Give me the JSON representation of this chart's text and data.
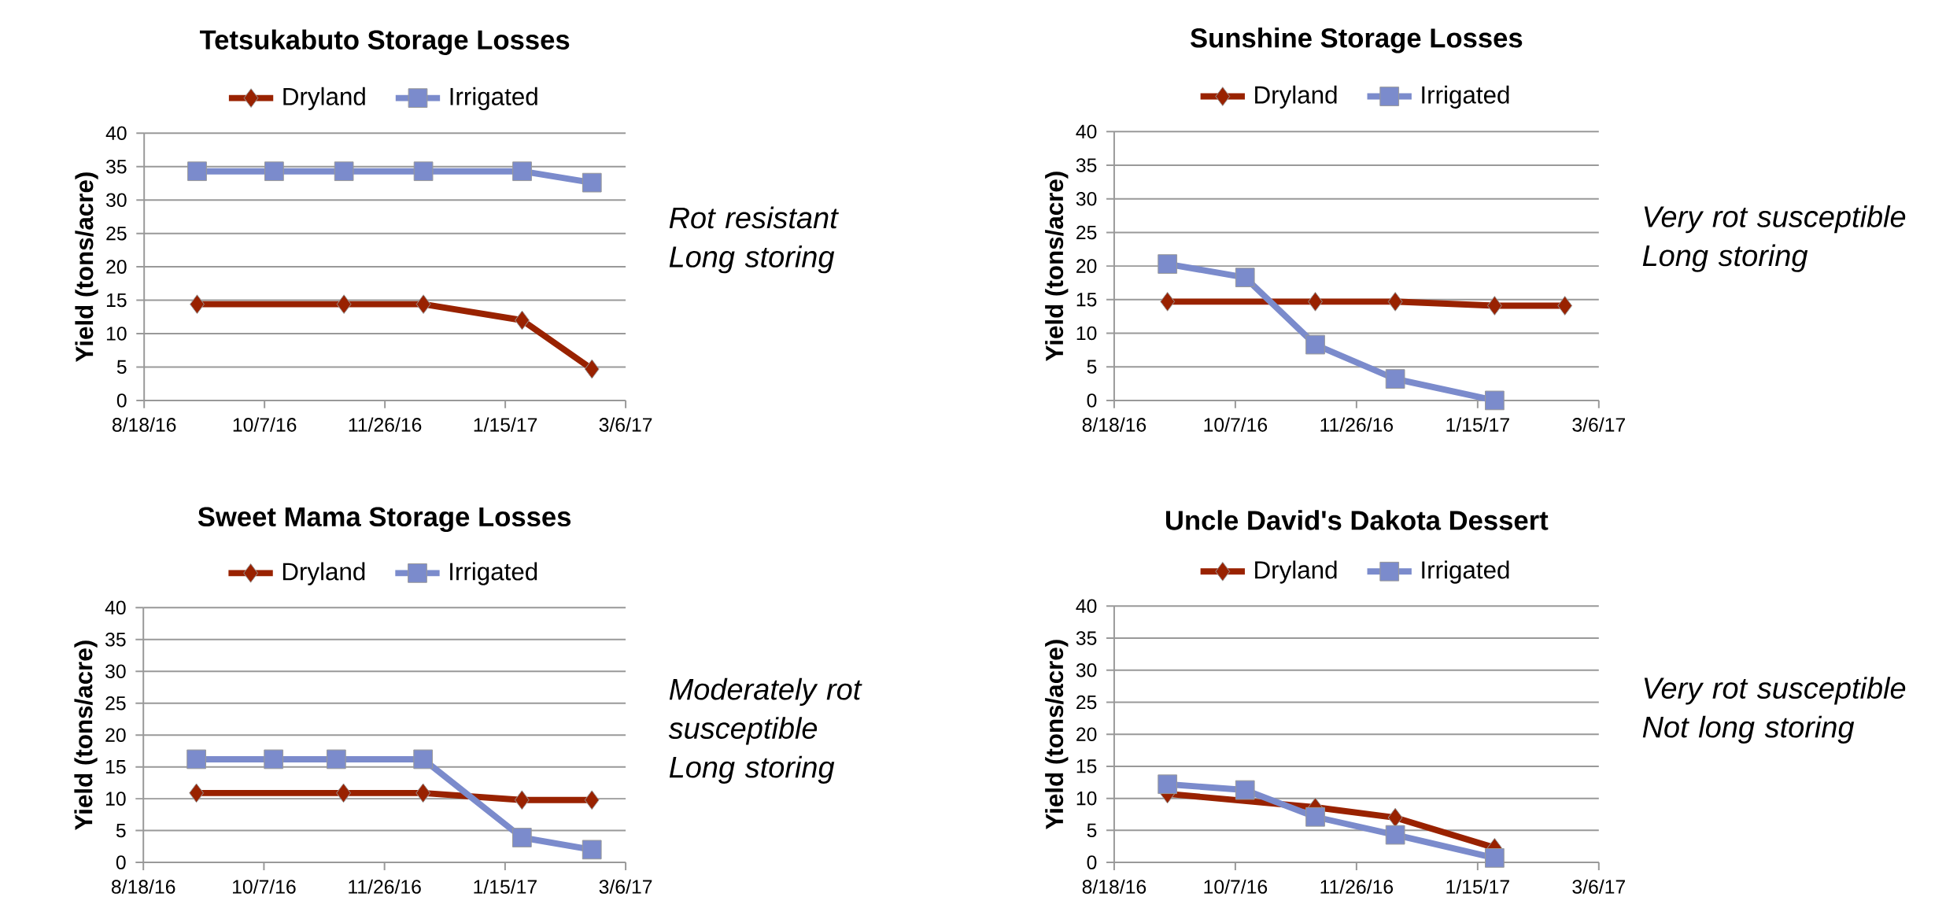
{
  "chart_data": [
    {
      "type": "line",
      "title": "Tetsukabuto Storage Losses",
      "ylabel": "Yield (tons/acre)",
      "xlim": [
        "2016-08-18",
        "2017-03-06"
      ],
      "xticks": [
        {
          "value": "2016-08-18",
          "label": "8/18/16"
        },
        {
          "value": "2016-10-07",
          "label": "10/7/16"
        },
        {
          "value": "2016-11-26",
          "label": "11/26/16"
        },
        {
          "value": "2017-01-15",
          "label": "1/15/17"
        },
        {
          "value": "2017-03-06",
          "label": "3/6/17"
        }
      ],
      "ylim": [
        0,
        40
      ],
      "yticks": [
        0,
        5,
        10,
        15,
        20,
        25,
        30,
        35,
        40
      ],
      "grid": "y",
      "legend": "top",
      "line_style": "solid",
      "series": [
        {
          "name": "Dryland",
          "color": "#992200",
          "marker": "diamond",
          "x": [
            "2016-09-09",
            "2016-11-09",
            "2016-12-12",
            "2017-01-22",
            "2017-02-20"
          ],
          "values": [
            14.4,
            14.4,
            14.4,
            12.0,
            4.7
          ]
        },
        {
          "name": "Irrigated",
          "color": "#7b8bcc",
          "marker": "square",
          "x": [
            "2016-09-09",
            "2016-10-11",
            "2016-11-09",
            "2016-12-12",
            "2017-01-22",
            "2017-02-20"
          ],
          "values": [
            34.3,
            34.3,
            34.3,
            34.3,
            34.3,
            32.6
          ]
        }
      ],
      "annotations": [
        "Rot resistant",
        "Long storing"
      ]
    },
    {
      "type": "line",
      "title": "Sunshine Storage Losses",
      "ylabel": "Yield (tons/acre)",
      "xlim": [
        "2016-08-18",
        "2017-03-06"
      ],
      "xticks": [
        {
          "value": "2016-08-18",
          "label": "8/18/16"
        },
        {
          "value": "2016-10-07",
          "label": "10/7/16"
        },
        {
          "value": "2016-11-26",
          "label": "11/26/16"
        },
        {
          "value": "2017-01-15",
          "label": "1/15/17"
        },
        {
          "value": "2017-03-06",
          "label": "3/6/17"
        }
      ],
      "ylim": [
        0,
        40
      ],
      "yticks": [
        0,
        5,
        10,
        15,
        20,
        25,
        30,
        35,
        40
      ],
      "grid": "y",
      "legend": "top",
      "line_style": "solid",
      "series": [
        {
          "name": "Dryland",
          "color": "#992200",
          "marker": "diamond",
          "x": [
            "2016-09-09",
            "2016-11-09",
            "2016-12-12",
            "2017-01-22",
            "2017-02-20"
          ],
          "values": [
            14.7,
            14.7,
            14.7,
            14.1,
            14.1
          ]
        },
        {
          "name": "Irrigated",
          "color": "#7b8bcc",
          "marker": "square",
          "x": [
            "2016-09-09",
            "2016-10-11",
            "2016-11-09",
            "2016-12-12",
            "2017-01-22"
          ],
          "values": [
            20.3,
            18.3,
            8.3,
            3.2,
            0
          ]
        }
      ],
      "annotations": [
        "Very rot susceptible",
        "Long storing"
      ]
    },
    {
      "type": "line",
      "title": "Sweet Mama Storage Losses",
      "ylabel": "Yield (tons/acre)",
      "xlim": [
        "2016-08-18",
        "2017-03-06"
      ],
      "xticks": [
        {
          "value": "2016-08-18",
          "label": "8/18/16"
        },
        {
          "value": "2016-10-07",
          "label": "10/7/16"
        },
        {
          "value": "2016-11-26",
          "label": "11/26/16"
        },
        {
          "value": "2017-01-15",
          "label": "1/15/17"
        },
        {
          "value": "2017-03-06",
          "label": "3/6/17"
        }
      ],
      "ylim": [
        0,
        40
      ],
      "yticks": [
        0,
        5,
        10,
        15,
        20,
        25,
        30,
        35,
        40
      ],
      "grid": "y",
      "legend": "top",
      "line_style": "solid",
      "series": [
        {
          "name": "Dryland",
          "color": "#992200",
          "marker": "diamond",
          "x": [
            "2016-09-09",
            "2016-11-09",
            "2016-12-12",
            "2017-01-22",
            "2017-02-20"
          ],
          "values": [
            10.9,
            10.9,
            10.9,
            9.8,
            9.8
          ]
        },
        {
          "name": "Irrigated",
          "color": "#7b8bcc",
          "marker": "square",
          "x": [
            "2016-09-09",
            "2016-10-11",
            "2016-11-06",
            "2016-12-12",
            "2017-01-22",
            "2017-02-20"
          ],
          "values": [
            16.2,
            16.2,
            16.2,
            16.2,
            3.9,
            2.0
          ]
        }
      ],
      "annotations": [
        "Moderately rot susceptible",
        "Long storing"
      ]
    },
    {
      "type": "line",
      "title": "Uncle David's Dakota Dessert",
      "ylabel": "Yield (tons/acre)",
      "xlim": [
        "2016-08-18",
        "2017-03-06"
      ],
      "xticks": [
        {
          "value": "2016-08-18",
          "label": "8/18/16"
        },
        {
          "value": "2016-10-07",
          "label": "10/7/16"
        },
        {
          "value": "2016-11-26",
          "label": "11/26/16"
        },
        {
          "value": "2017-01-15",
          "label": "1/15/17"
        },
        {
          "value": "2017-03-06",
          "label": "3/6/17"
        }
      ],
      "ylim": [
        0,
        40
      ],
      "yticks": [
        0,
        5,
        10,
        15,
        20,
        25,
        30,
        35,
        40
      ],
      "grid": "y",
      "legend": "top",
      "line_style": "solid",
      "series": [
        {
          "name": "Dryland",
          "color": "#992200",
          "marker": "diamond",
          "x": [
            "2016-09-09",
            "2016-11-09",
            "2016-12-12",
            "2017-01-22"
          ],
          "values": [
            10.7,
            8.6,
            7.0,
            2.3
          ]
        },
        {
          "name": "Irrigated",
          "color": "#7b8bcc",
          "marker": "square",
          "x": [
            "2016-09-09",
            "2016-10-11",
            "2016-11-09",
            "2016-12-12",
            "2017-01-22"
          ],
          "values": [
            12.2,
            11.3,
            7.1,
            4.3,
            0.7
          ]
        }
      ],
      "annotations": [
        "Very rot susceptible",
        "Not long storing"
      ]
    }
  ]
}
